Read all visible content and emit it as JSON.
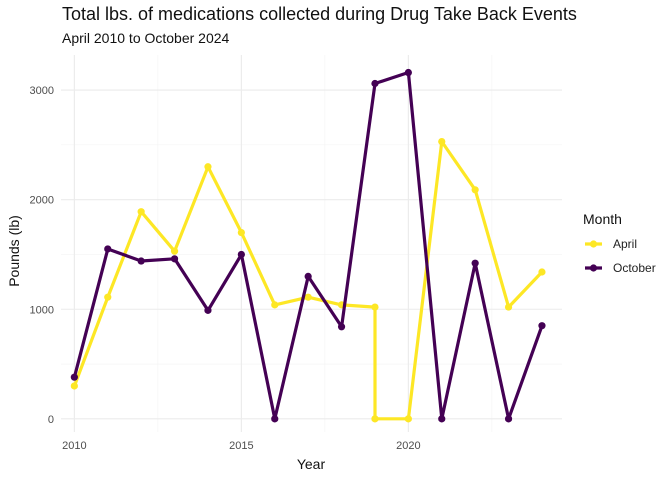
{
  "chart_data": {
    "type": "line",
    "title": "Total lbs. of medications collected during Drug Take Back Events",
    "subtitle": "April 2010 to October 2024",
    "xlabel": "Year",
    "ylabel": "Pounds (lb)",
    "xlim": [
      2009.6,
      2024.6
    ],
    "ylim": [
      -120,
      3320
    ],
    "x_ticks": [
      2010,
      2015,
      2020
    ],
    "y_ticks": [
      0,
      1000,
      2000,
      3000
    ],
    "grid": true,
    "legend": {
      "title": "Month",
      "position": "right"
    },
    "series": [
      {
        "name": "April",
        "color": "#FDE725",
        "x": [
          2010,
          2011,
          2012,
          2013,
          2014,
          2015,
          2016,
          2017,
          2018,
          2019,
          2019,
          2020,
          2021,
          2022,
          2023,
          2024
        ],
        "values": [
          300,
          1110,
          1890,
          1530,
          2300,
          1700,
          1040,
          1110,
          1040,
          1020,
          0,
          0,
          2530,
          2090,
          1020,
          1340
        ]
      },
      {
        "name": "October",
        "color": "#440154",
        "x": [
          2010,
          2011,
          2012,
          2013,
          2014,
          2015,
          2016,
          2017,
          2018,
          2019,
          2020,
          2021,
          2022,
          2023,
          2024
        ],
        "values": [
          380,
          1550,
          1440,
          1460,
          990,
          1500,
          0,
          1300,
          840,
          3060,
          3160,
          0,
          1420,
          0,
          850
        ]
      }
    ]
  }
}
